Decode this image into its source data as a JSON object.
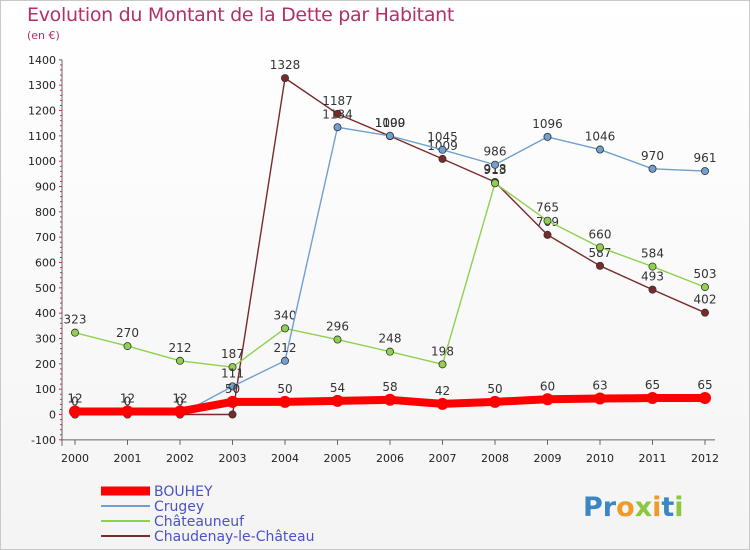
{
  "title": "Evolution du Montant de la Dette par Habitant",
  "unit_label": "(en €)",
  "logo_letters": [
    {
      "text": "P",
      "color": "#3b86c4"
    },
    {
      "text": "r",
      "color": "#3b86c4"
    },
    {
      "text": "o",
      "color": "#f29a26"
    },
    {
      "text": "x",
      "color": "#8dc63f"
    },
    {
      "text": "i",
      "color": "#f29a26"
    },
    {
      "text": "t",
      "color": "#3b86c4"
    },
    {
      "text": "i",
      "color": "#8dc63f"
    }
  ],
  "chart_data": {
    "type": "line",
    "x": [
      "2000",
      "2001",
      "2002",
      "2003",
      "2004",
      "2005",
      "2006",
      "2007",
      "2008",
      "2009",
      "2010",
      "2011",
      "2012"
    ],
    "ylim": [
      -100,
      1400
    ],
    "yticks": [
      -100,
      0,
      100,
      200,
      300,
      400,
      500,
      600,
      700,
      800,
      900,
      1000,
      1100,
      1200,
      1300,
      1400
    ],
    "grid": false,
    "legend_placement": "bottom-left",
    "series": [
      {
        "name": "Chaudenay-le-Château",
        "color": "#7a2a2a",
        "values": [
          0,
          0,
          0,
          0,
          1328,
          1187,
          1099,
          1009,
          918,
          709,
          587,
          493,
          402
        ],
        "labels": [
          "",
          "",
          "",
          "",
          "1328",
          "1187",
          "1099",
          "1009",
          "918",
          "709",
          "587",
          "493",
          "402"
        ]
      },
      {
        "name": "Châteauneuf",
        "color": "#8fd14f",
        "values": [
          323,
          270,
          212,
          187,
          340,
          296,
          248,
          198,
          913,
          765,
          660,
          584,
          503
        ],
        "labels": [
          "323",
          "270",
          "212",
          "187",
          "340",
          "296",
          "248",
          "198",
          "913",
          "765",
          "660",
          "584",
          "503"
        ]
      },
      {
        "name": "Crugey",
        "color": "#6fa0cf",
        "values": [
          0,
          0,
          0,
          111,
          212,
          1134,
          1100,
          1045,
          986,
          1096,
          1046,
          970,
          961
        ],
        "labels": [
          "0",
          "0",
          "0",
          "111",
          "212",
          "1134",
          "1100",
          "1045",
          "986",
          "1096",
          "1046",
          "970",
          "961"
        ]
      },
      {
        "name": "BOUHEY",
        "color": "#ff0000",
        "values": [
          12,
          12,
          12,
          50,
          50,
          54,
          58,
          42,
          50,
          60,
          63,
          65,
          65
        ],
        "labels": [
          "12",
          "12",
          "12",
          "50",
          "50",
          "54",
          "58",
          "42",
          "50",
          "60",
          "63",
          "65",
          "65"
        ]
      }
    ],
    "legend": [
      "BOUHEY",
      "Crugey",
      "Châteauneuf",
      "Chaudenay-le-Château"
    ]
  }
}
